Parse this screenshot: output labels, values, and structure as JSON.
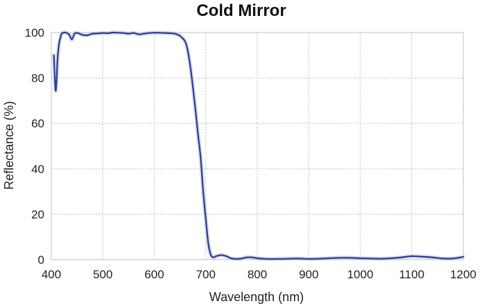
{
  "chart_data": {
    "type": "line",
    "title": "Cold Mirror",
    "xlabel": "Wavelength (nm)",
    "ylabel": "Reflectance (%)",
    "xlim": [
      400,
      1200
    ],
    "ylim": [
      0,
      100
    ],
    "x_ticks": [
      400,
      500,
      600,
      700,
      800,
      900,
      1000,
      1100,
      1200
    ],
    "y_ticks": [
      0,
      20,
      40,
      60,
      80,
      100
    ],
    "grid": true,
    "legend": "none",
    "series": [
      {
        "color": "#2b3a8c",
        "x": [
          405,
          408,
          410,
          412,
          415,
          418,
          420,
          425,
          430,
          435,
          440,
          445,
          450,
          455,
          460,
          470,
          480,
          490,
          500,
          510,
          520,
          530,
          540,
          550,
          560,
          570,
          580,
          590,
          600,
          610,
          620,
          630,
          640,
          650,
          660,
          665,
          670,
          675,
          680,
          685,
          690,
          695,
          700,
          705,
          710,
          715,
          720,
          730,
          740,
          750,
          760,
          770,
          780,
          790,
          800,
          820,
          840,
          860,
          880,
          900,
          920,
          940,
          960,
          980,
          1000,
          1020,
          1040,
          1060,
          1080,
          1100,
          1120,
          1140,
          1160,
          1180,
          1200
        ],
        "y": [
          90,
          75,
          78,
          88,
          95,
          98,
          99.5,
          100,
          99.8,
          99,
          97,
          99.5,
          99.8,
          99.5,
          99,
          98.8,
          99.5,
          99.6,
          99.8,
          99.7,
          100,
          99.9,
          99.8,
          99.5,
          99.8,
          99.2,
          99.5,
          99.8,
          99.9,
          99.9,
          99.8,
          99.7,
          99.5,
          98.5,
          96,
          92,
          85,
          76,
          66,
          55,
          45,
          30,
          18,
          7,
          2,
          1,
          1.5,
          2,
          1.5,
          0.5,
          0.3,
          0.5,
          1,
          1,
          0.6,
          0.3,
          0.3,
          0.4,
          0.5,
          0.3,
          0.4,
          0.6,
          0.8,
          0.8,
          0.6,
          0.5,
          0.4,
          0.6,
          1,
          1.5,
          1.3,
          1,
          0.5,
          0.5,
          1.2
        ]
      }
    ]
  }
}
